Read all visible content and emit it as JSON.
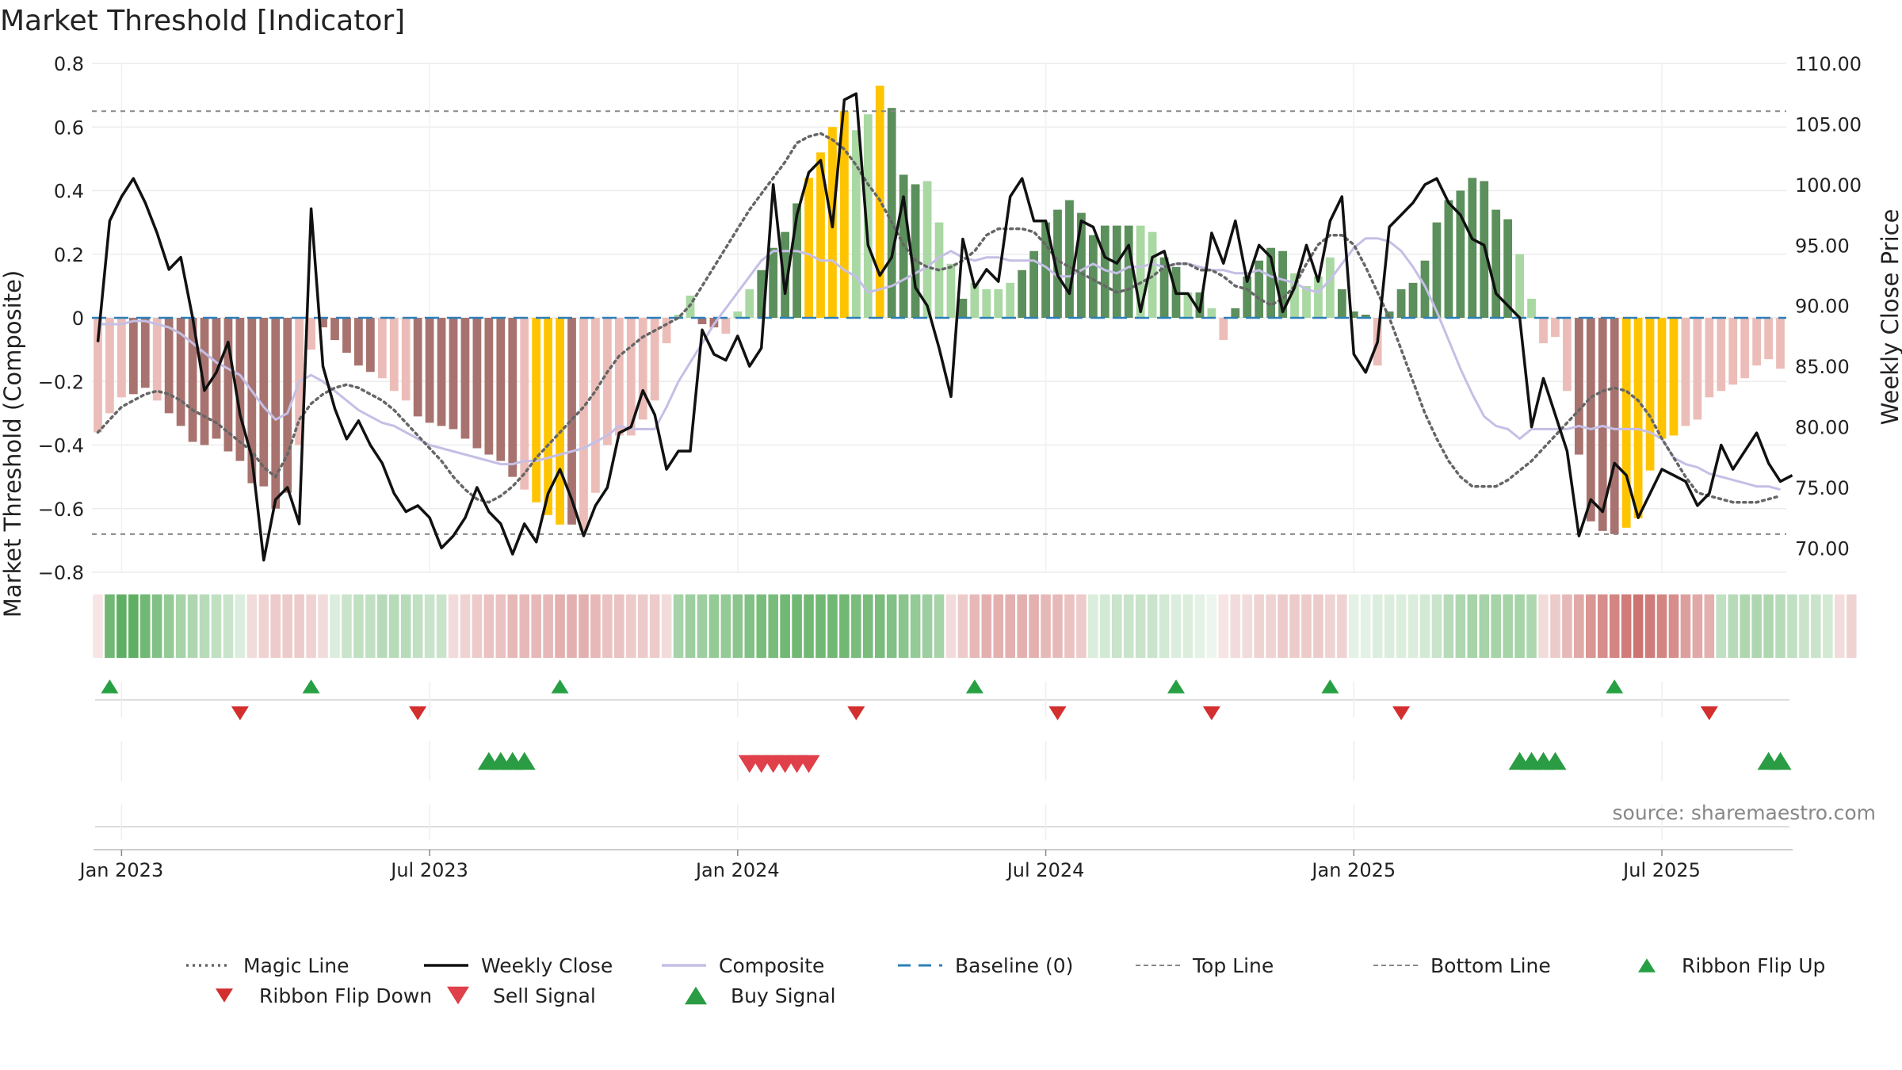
{
  "title": "Market Threshold [Indicator]",
  "source": "source: sharemaestro.com",
  "colors": {
    "composite": "#c5bfe6",
    "weekly_close": "#111111",
    "magic_line": "#666666",
    "baseline": "#2c7fb8",
    "ref_lines": "#888888",
    "bar_strong_pos": "#5b8f5b",
    "bar_weak_pos": "#a9d8a3",
    "bar_strong_neg": "#a8736f",
    "bar_weak_neg": "#ecbdb8",
    "bar_extreme": "#ffc400",
    "ribbon_up": "#4ca650",
    "ribbon_down": "#c0504d",
    "flip_up": "#27a043",
    "flip_down": "#d32f2f",
    "sell": "#e0404a",
    "buy": "#2a9c43"
  },
  "chart_data": {
    "type": "bar",
    "title": "Market Threshold [Indicator]",
    "ylabel": "Market Threshold (Composite)",
    "y2label": "Weekly Close Price",
    "ylim": [
      -0.8,
      0.8
    ],
    "y2lim": [
      68.0,
      110.0
    ],
    "y_ticks": [
      {
        "v": 0.8,
        "label": "0.8"
      },
      {
        "v": 0.6,
        "label": "0.6"
      },
      {
        "v": 0.4,
        "label": "0.4"
      },
      {
        "v": 0.2,
        "label": "0.2"
      },
      {
        "v": 0.0,
        "label": "0"
      },
      {
        "v": -0.2,
        "label": "−0.2"
      },
      {
        "v": -0.4,
        "label": "−0.4"
      },
      {
        "v": -0.6,
        "label": "−0.6"
      },
      {
        "v": -0.8,
        "label": "−0.8"
      }
    ],
    "y2_ticks": [
      {
        "v": 110,
        "label": "110.00"
      },
      {
        "v": 105,
        "label": "105.00"
      },
      {
        "v": 100,
        "label": "100.00"
      },
      {
        "v": 95,
        "label": "95.00"
      },
      {
        "v": 90,
        "label": "90.00"
      },
      {
        "v": 85,
        "label": "85.00"
      },
      {
        "v": 80,
        "label": "80.00"
      },
      {
        "v": 75,
        "label": "75.00"
      },
      {
        "v": 70,
        "label": "70.00"
      }
    ],
    "x_ticks": [
      {
        "week": 2,
        "label": "Jan 2023"
      },
      {
        "week": 28,
        "label": "Jul 2023"
      },
      {
        "week": 54,
        "label": "Jan 2024"
      },
      {
        "week": 80,
        "label": "Jul 2024"
      },
      {
        "week": 106,
        "label": "Jan 2025"
      },
      {
        "week": 132,
        "label": "Jul 2025"
      }
    ],
    "weeks": 143,
    "top_line": 0.65,
    "bottom_line": -0.68,
    "baseline": 0,
    "composite_bars": [
      -0.36,
      -0.3,
      -0.25,
      -0.24,
      -0.22,
      -0.26,
      -0.3,
      -0.34,
      -0.39,
      -0.4,
      -0.38,
      -0.42,
      -0.45,
      -0.52,
      -0.53,
      -0.6,
      -0.55,
      -0.4,
      -0.1,
      -0.03,
      -0.07,
      -0.11,
      -0.15,
      -0.17,
      -0.19,
      -0.23,
      -0.26,
      -0.31,
      -0.33,
      -0.34,
      -0.35,
      -0.38,
      -0.41,
      -0.43,
      -0.45,
      -0.5,
      -0.54,
      -0.58,
      -0.62,
      -0.65,
      -0.65,
      -0.67,
      -0.55,
      -0.4,
      -0.37,
      -0.37,
      -0.32,
      -0.26,
      -0.08,
      0.01,
      0.07,
      -0.02,
      -0.03,
      -0.05,
      0.02,
      0.09,
      0.15,
      0.22,
      0.27,
      0.36,
      0.44,
      0.52,
      0.6,
      0.65,
      0.59,
      0.64,
      0.73,
      0.66,
      0.45,
      0.42,
      0.43,
      0.3,
      0.17,
      0.06,
      0.11,
      0.09,
      0.09,
      0.11,
      0.15,
      0.21,
      0.3,
      0.34,
      0.37,
      0.33,
      0.26,
      0.29,
      0.29,
      0.29,
      0.29,
      0.27,
      0.19,
      0.16,
      0.08,
      0.08,
      0.03,
      -0.07,
      0.03,
      0.13,
      0.18,
      0.22,
      0.21,
      0.14,
      0.1,
      0.13,
      0.19,
      0.09,
      0.02,
      0.01,
      -0.15,
      0.02,
      0.09,
      0.11,
      0.18,
      0.3,
      0.37,
      0.4,
      0.44,
      0.43,
      0.34,
      0.31,
      0.2,
      0.06,
      -0.08,
      -0.06,
      -0.23,
      -0.43,
      -0.64,
      -0.67,
      -0.68,
      -0.66,
      -0.63,
      -0.48,
      -0.38,
      -0.37,
      -0.34,
      -0.32,
      -0.25,
      -0.23,
      -0.21,
      -0.19,
      -0.15,
      -0.13,
      -0.16
    ],
    "bar_styles": "nwwsswsssssssssssnwsssssnnwsssssssssnyyyswwwwwwnwwnsswwwssssyyyywwyssswwwswwwwsssssssssswwsswswwssssswwwwssswssssssssssswwwwwssssyyyyywwwwwwwwwwwwssssssssy",
    "weekly_close": [
      87.0,
      97.0,
      99.0,
      100.5,
      98.5,
      96.0,
      93.0,
      94.0,
      89.0,
      83.0,
      84.5,
      87.0,
      81.0,
      77.5,
      69.0,
      74.0,
      75.0,
      72.0,
      98.0,
      85.0,
      81.5,
      79.0,
      80.5,
      78.5,
      77.0,
      74.5,
      73.0,
      73.5,
      72.5,
      70.0,
      71.0,
      72.5,
      75.0,
      73.0,
      72.0,
      69.5,
      72.0,
      70.5,
      74.5,
      76.5,
      74.0,
      71.0,
      73.5,
      75.0,
      79.5,
      80.0,
      83.0,
      81.0,
      76.5,
      78.0,
      78.0,
      88.0,
      86.0,
      85.5,
      87.5,
      85.0,
      86.5,
      100.0,
      91.0,
      97.5,
      101.0,
      102.0,
      96.5,
      107.0,
      107.5,
      95.0,
      92.5,
      94.0,
      99.0,
      91.5,
      90.0,
      86.5,
      82.5,
      95.5,
      91.5,
      93.0,
      92.0,
      99.0,
      100.5,
      97.0,
      97.0,
      92.5,
      91.0,
      97.0,
      96.5,
      94.0,
      93.5,
      95.0,
      89.5,
      94.0,
      94.5,
      91.0,
      91.0,
      89.5,
      96.0,
      93.5,
      97.0,
      92.0,
      95.0,
      94.0,
      89.5,
      91.5,
      95.0,
      92.0,
      97.0,
      99.0,
      86.0,
      84.5,
      87.0,
      96.5,
      97.5,
      98.5,
      100.0,
      100.5,
      98.5,
      97.5,
      95.5,
      95.0,
      91.0,
      90.0,
      89.0,
      80.0,
      84.0,
      81.0,
      78.0,
      71.0,
      74.0,
      73.0,
      77.0,
      76.0,
      72.5,
      74.5,
      76.5,
      76.0,
      75.5,
      73.5,
      74.5,
      78.5,
      76.5,
      78.0,
      79.5,
      77.0,
      75.5,
      76.0
    ],
    "composite_line": [
      -0.02,
      -0.02,
      -0.02,
      -0.01,
      -0.01,
      -0.02,
      -0.03,
      -0.05,
      -0.08,
      -0.11,
      -0.14,
      -0.16,
      -0.18,
      -0.23,
      -0.28,
      -0.32,
      -0.3,
      -0.2,
      -0.18,
      -0.2,
      -0.23,
      -0.26,
      -0.29,
      -0.31,
      -0.33,
      -0.34,
      -0.36,
      -0.38,
      -0.4,
      -0.41,
      -0.42,
      -0.43,
      -0.44,
      -0.45,
      -0.46,
      -0.46,
      -0.45,
      -0.45,
      -0.44,
      -0.43,
      -0.42,
      -0.41,
      -0.39,
      -0.37,
      -0.34,
      -0.35,
      -0.35,
      -0.35,
      -0.28,
      -0.2,
      -0.14,
      -0.08,
      -0.02,
      0.03,
      0.08,
      0.13,
      0.18,
      0.21,
      0.21,
      0.21,
      0.2,
      0.18,
      0.18,
      0.15,
      0.13,
      0.08,
      0.09,
      0.1,
      0.12,
      0.14,
      0.16,
      0.19,
      0.21,
      0.19,
      0.18,
      0.19,
      0.19,
      0.18,
      0.18,
      0.18,
      0.16,
      0.13,
      0.13,
      0.15,
      0.17,
      0.15,
      0.14,
      0.16,
      0.16,
      0.17,
      0.16,
      0.17,
      0.17,
      0.16,
      0.15,
      0.15,
      0.14,
      0.14,
      0.15,
      0.13,
      0.12,
      0.11,
      0.09,
      0.08,
      0.12,
      0.17,
      0.22,
      0.25,
      0.25,
      0.24,
      0.21,
      0.16,
      0.1,
      0.02,
      -0.07,
      -0.16,
      -0.24,
      -0.31,
      -0.34,
      -0.35,
      -0.38,
      -0.35,
      -0.35,
      -0.35,
      -0.35,
      -0.34,
      -0.35,
      -0.34,
      -0.35,
      -0.35,
      -0.35,
      -0.36,
      -0.38,
      -0.44,
      -0.46,
      -0.47,
      -0.49,
      -0.5,
      -0.51,
      -0.52,
      -0.53,
      -0.53,
      -0.54
    ],
    "magic_line": [
      -0.36,
      -0.32,
      -0.28,
      -0.26,
      -0.24,
      -0.23,
      -0.24,
      -0.26,
      -0.29,
      -0.31,
      -0.33,
      -0.36,
      -0.39,
      -0.42,
      -0.47,
      -0.5,
      -0.43,
      -0.32,
      -0.27,
      -0.24,
      -0.22,
      -0.21,
      -0.22,
      -0.24,
      -0.26,
      -0.29,
      -0.33,
      -0.37,
      -0.41,
      -0.45,
      -0.5,
      -0.54,
      -0.57,
      -0.58,
      -0.56,
      -0.53,
      -0.49,
      -0.44,
      -0.4,
      -0.36,
      -0.32,
      -0.28,
      -0.23,
      -0.17,
      -0.12,
      -0.09,
      -0.06,
      -0.04,
      -0.02,
      0.0,
      0.04,
      0.1,
      0.16,
      0.22,
      0.28,
      0.34,
      0.39,
      0.44,
      0.49,
      0.55,
      0.57,
      0.58,
      0.56,
      0.53,
      0.48,
      0.42,
      0.37,
      0.3,
      0.23,
      0.18,
      0.16,
      0.15,
      0.16,
      0.18,
      0.21,
      0.26,
      0.28,
      0.28,
      0.28,
      0.27,
      0.23,
      0.18,
      0.16,
      0.14,
      0.12,
      0.1,
      0.08,
      0.09,
      0.11,
      0.13,
      0.16,
      0.17,
      0.17,
      0.15,
      0.15,
      0.13,
      0.1,
      0.09,
      0.06,
      0.04,
      0.06,
      0.1,
      0.17,
      0.23,
      0.26,
      0.26,
      0.23,
      0.16,
      0.08,
      0.0,
      -0.1,
      -0.2,
      -0.3,
      -0.38,
      -0.45,
      -0.5,
      -0.53,
      -0.53,
      -0.53,
      -0.51,
      -0.48,
      -0.45,
      -0.41,
      -0.37,
      -0.33,
      -0.29,
      -0.25,
      -0.23,
      -0.22,
      -0.23,
      -0.26,
      -0.31,
      -0.38,
      -0.44,
      -0.5,
      -0.55,
      -0.56,
      -0.57,
      -0.58,
      -0.58,
      -0.58,
      -0.57,
      -0.56
    ],
    "ribbon": [
      -0.15,
      0.8,
      0.9,
      0.9,
      0.8,
      0.7,
      0.6,
      0.5,
      0.45,
      0.4,
      0.35,
      0.3,
      0.2,
      -0.2,
      -0.25,
      -0.3,
      -0.3,
      -0.3,
      -0.25,
      -0.2,
      0.2,
      0.3,
      0.35,
      0.35,
      0.4,
      0.4,
      0.4,
      0.35,
      0.3,
      0.3,
      -0.2,
      -0.25,
      -0.3,
      -0.35,
      -0.35,
      -0.4,
      -0.4,
      -0.4,
      -0.4,
      -0.45,
      -0.45,
      -0.45,
      -0.4,
      -0.35,
      -0.35,
      -0.3,
      -0.3,
      -0.3,
      -0.2,
      0.5,
      0.55,
      0.55,
      0.6,
      0.6,
      0.65,
      0.7,
      0.75,
      0.75,
      0.8,
      0.8,
      0.8,
      0.8,
      0.8,
      0.8,
      0.75,
      0.75,
      0.75,
      0.7,
      0.65,
      0.6,
      0.55,
      0.5,
      -0.2,
      -0.3,
      -0.4,
      -0.45,
      -0.45,
      -0.45,
      -0.45,
      -0.45,
      -0.4,
      -0.4,
      -0.35,
      -0.3,
      0.2,
      0.25,
      0.3,
      0.3,
      0.3,
      0.3,
      0.25,
      0.2,
      0.2,
      0.15,
      0.1,
      -0.15,
      -0.2,
      -0.2,
      -0.25,
      -0.25,
      -0.3,
      -0.3,
      -0.3,
      -0.3,
      -0.25,
      -0.25,
      0.15,
      0.15,
      0.2,
      0.2,
      0.2,
      0.2,
      0.25,
      0.3,
      0.4,
      0.45,
      0.5,
      0.5,
      0.5,
      0.5,
      0.5,
      0.45,
      -0.2,
      -0.3,
      -0.4,
      -0.5,
      -0.6,
      -0.65,
      -0.7,
      -0.75,
      -0.8,
      -0.75,
      -0.7,
      -0.65,
      -0.55,
      -0.5,
      -0.45,
      0.35,
      0.4,
      0.45,
      0.45,
      0.45,
      0.4,
      0.35,
      0.3,
      0.3,
      0.25,
      -0.2,
      -0.25
    ],
    "ribbon_flip_up": [
      1,
      18,
      39,
      74,
      91,
      104,
      128
    ],
    "ribbon_flip_down": [
      12,
      27,
      64,
      81,
      94,
      110,
      136
    ],
    "buy_signals": [
      33,
      34,
      35,
      36,
      120,
      121,
      122,
      123,
      141,
      142
    ],
    "sell_signals": [
      55,
      56,
      57,
      58,
      59,
      60
    ],
    "legend": [
      {
        "label": "Magic Line",
        "key": "magic"
      },
      {
        "label": "Weekly Close",
        "key": "close"
      },
      {
        "label": "Composite",
        "key": "composite"
      },
      {
        "label": "Baseline (0)",
        "key": "baseline"
      },
      {
        "label": "Top Line",
        "key": "topline"
      },
      {
        "label": "Bottom Line",
        "key": "bottomline"
      },
      {
        "label": "Ribbon Flip Up",
        "key": "flipup"
      },
      {
        "label": "Ribbon Flip Down",
        "key": "flipdown"
      },
      {
        "label": "Sell Signal",
        "key": "sell"
      },
      {
        "label": "Buy Signal",
        "key": "buy"
      }
    ]
  }
}
